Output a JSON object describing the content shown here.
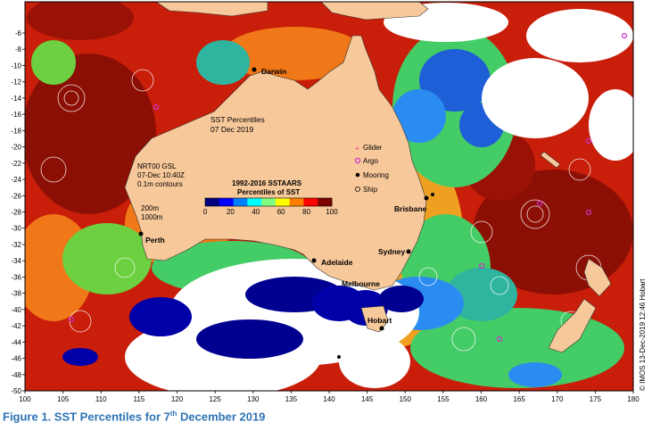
{
  "map": {
    "title_line1": "SST Percentiles",
    "title_line2": "07 Dec 2019",
    "info_line1": "NRT00 GSL",
    "info_line2": "07-Dec 10:40Z",
    "info_line3": "0.1m contours",
    "contour_200": "200m",
    "contour_1000": "1000m",
    "colorbar_title1": "1992-2016 SSTAARS",
    "colorbar_title2": "Percentiles of SST",
    "colorbar_ticks": [
      "0",
      "20",
      "40",
      "60",
      "80",
      "100"
    ],
    "colorbar_colors": [
      "#00007f",
      "#0000ff",
      "#007fff",
      "#00ffff",
      "#7fff7f",
      "#ffff00",
      "#ff7f00",
      "#ff0000",
      "#7f0000"
    ],
    "legend": [
      {
        "label": "Glider",
        "symbol": "glider-symbol",
        "color": "#ff3399"
      },
      {
        "label": "Argo",
        "symbol": "argo-symbol",
        "color": "#cc33cc"
      },
      {
        "label": "Mooring",
        "symbol": "mooring-symbol",
        "color": "#000000"
      },
      {
        "label": "Ship",
        "symbol": "ship-symbol",
        "color": "#000000"
      }
    ],
    "cities": [
      "Darwin",
      "Brisbane",
      "Sydney",
      "Melbourne",
      "Hobart",
      "Adelaide",
      "Perth"
    ],
    "credit": "© IMOS 13-Dec-2019 12:46 Hobart",
    "lon_ticks": [
      "100",
      "105",
      "110",
      "115",
      "120",
      "125",
      "130",
      "135",
      "140",
      "145",
      "150",
      "155",
      "160",
      "165",
      "170",
      "175",
      "180"
    ],
    "lat_ticks": [
      "-6",
      "-8",
      "-10",
      "-12",
      "-14",
      "-16",
      "-18",
      "-20",
      "-22",
      "-24",
      "-26",
      "-28",
      "-30",
      "-32",
      "-34",
      "-36",
      "-38",
      "-40",
      "-42",
      "-44",
      "-46",
      "-48",
      "-50"
    ],
    "land_color": "#f7c89a",
    "no_data_color": "#ffffff"
  },
  "caption": {
    "prefix": "Figure 1. SST Percentiles for 7",
    "superscript": "th",
    "suffix": " December 2019"
  }
}
